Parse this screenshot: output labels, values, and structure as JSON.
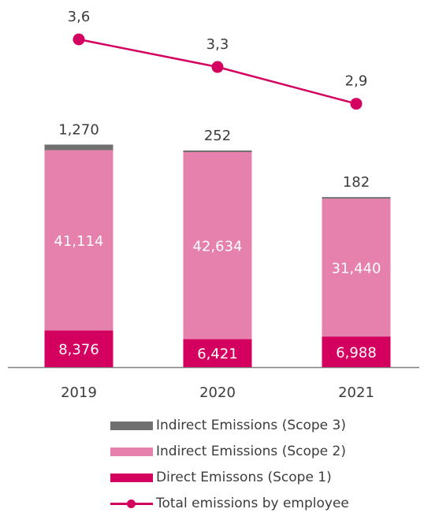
{
  "chart_data": {
    "type": "bar",
    "stacked": true,
    "categories": [
      "2019",
      "2020",
      "2021"
    ],
    "series": [
      {
        "name": "Direct Emissons (Scope 1)",
        "values": [
          8376,
          6421,
          6988
        ],
        "labels": [
          "8,376",
          "6,421",
          "6,988"
        ]
      },
      {
        "name": "Indirect Emissions (Scope 2)",
        "values": [
          41114,
          42634,
          31440
        ],
        "labels": [
          "41,114",
          "42,634",
          "31,440"
        ]
      },
      {
        "name": "Indirect Emissions (Scope 3)",
        "values": [
          1270,
          252,
          182
        ],
        "labels": [
          "1,270",
          "252",
          "182"
        ]
      }
    ],
    "line_series": {
      "name": "Total emissions by employee",
      "values": [
        3.6,
        3.3,
        2.9
      ],
      "labels": [
        "3,6",
        "3,3",
        "2,9"
      ]
    },
    "legend_position": "bottom",
    "grid": false
  },
  "colors": {
    "scope1": "#d4005f",
    "scope2": "#e680ad",
    "scope3": "#707070",
    "line": "#d4005f",
    "axis": "#808080",
    "text": "#3c3c3c"
  }
}
